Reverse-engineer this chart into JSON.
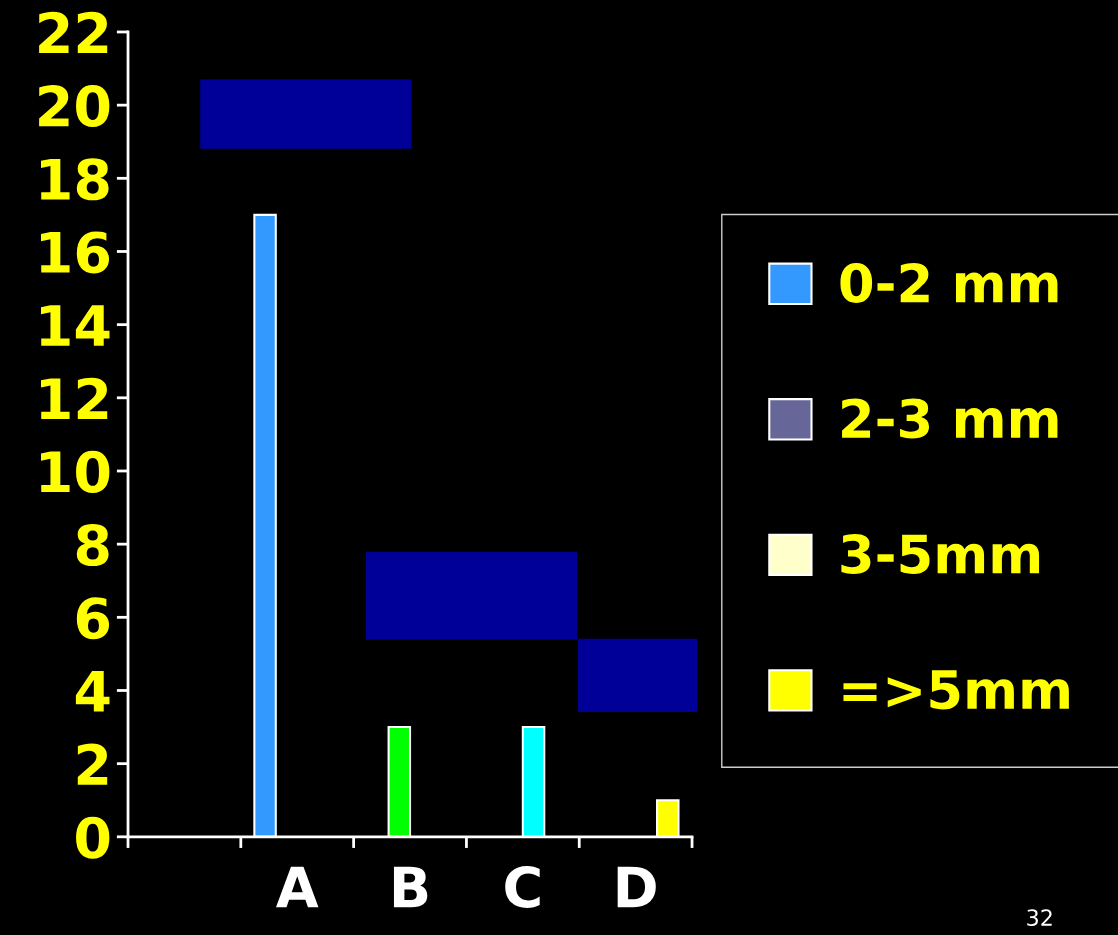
{
  "chart_data": {
    "type": "bar",
    "categories": [
      null,
      "A",
      "B",
      "C",
      "D"
    ],
    "series": [
      {
        "name": "0-2 mm",
        "color": "#3399ff",
        "colors": [
          null,
          "#3399ff",
          null,
          null,
          null
        ],
        "values": [
          null,
          17,
          null,
          null,
          null
        ]
      },
      {
        "name": "2-3 mm",
        "color": "#666699",
        "colors": [
          null,
          null,
          "#00ff00",
          null,
          null
        ],
        "values": [
          null,
          null,
          3,
          null,
          null
        ]
      },
      {
        "name": "3-5mm",
        "color": "#ffffcc",
        "colors": [
          null,
          null,
          null,
          "#00ffff",
          null
        ],
        "values": [
          null,
          null,
          null,
          3,
          null
        ]
      },
      {
        "name": "=>5mm",
        "color": "#ffff00",
        "colors": [
          null,
          null,
          null,
          null,
          "#ffff00"
        ],
        "values": [
          null,
          null,
          null,
          null,
          1
        ]
      }
    ],
    "ylim": [
      0,
      22
    ],
    "yticks": [
      0,
      2,
      4,
      6,
      8,
      10,
      12,
      14,
      16,
      18,
      20,
      22
    ],
    "grid": false,
    "legend": "right",
    "annotations": [
      "32"
    ]
  }
}
